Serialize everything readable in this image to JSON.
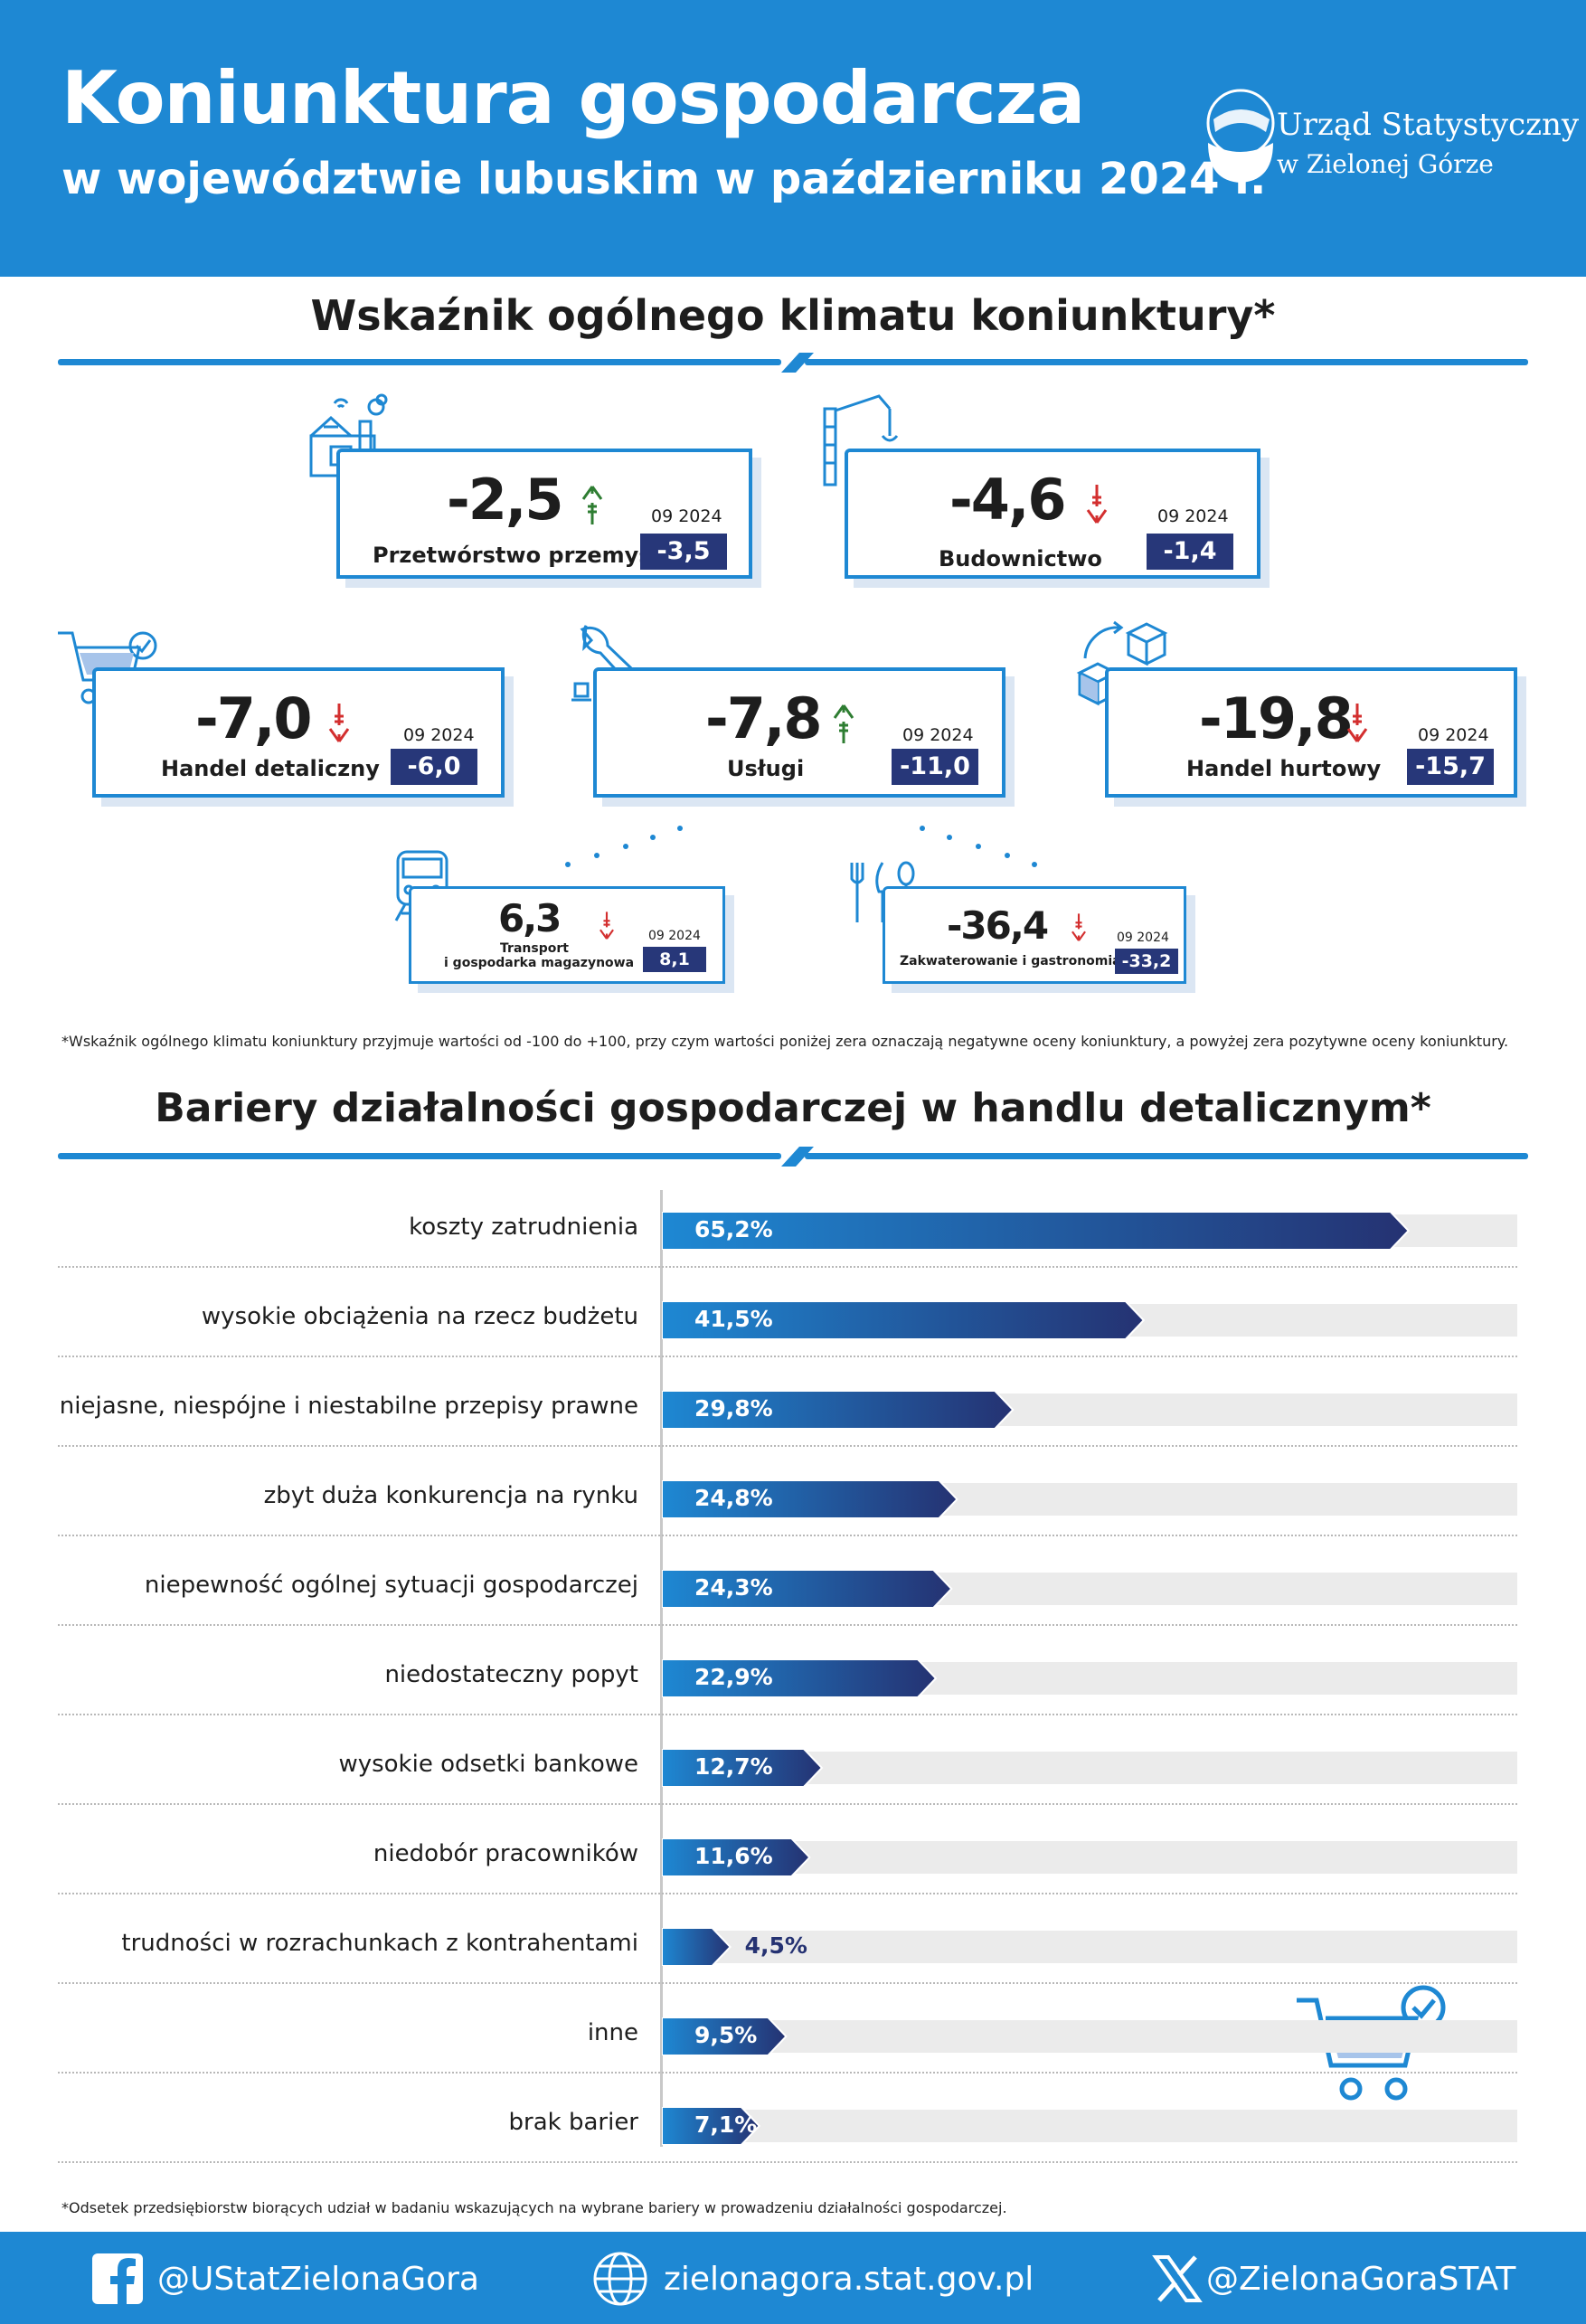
{
  "header": {
    "title": "Koniunktura gospodarcza",
    "subtitle": "w województwie lubuskim w październiku 2024 r.",
    "logo_line1": "Urząd Statystyczny",
    "logo_line2": "w Zielonej Górze"
  },
  "section1": {
    "title": "Wskaźnik ogólnego klimatu koniunktury*",
    "prev_label": "09 2024",
    "note": "*Wskaźnik ogólnego klimatu koniunktury przyjmuje wartości od -100 do +100, przy czym wartości poniżej zera oznaczają negatywne oceny koniunktury, a powyżej zera pozytywne oceny koniunktury."
  },
  "indicators": [
    {
      "name": "Przetwórstwo przemysłowe",
      "value": "-2,5",
      "prev": "-3,5",
      "trend": "up",
      "icon": "factory-icon"
    },
    {
      "name": "Budownictwo",
      "value": "-4,6",
      "prev": "-1,4",
      "trend": "down",
      "icon": "construction-crane-icon"
    },
    {
      "name": "Handel detaliczny",
      "value": "-7,0",
      "prev": "-6,0",
      "trend": "down",
      "icon": "shopping-cart-icon"
    },
    {
      "name": "Usługi",
      "value": "-7,8",
      "prev": "-11,0",
      "trend": "up",
      "icon": "wrench-icon"
    },
    {
      "name": "Handel hurtowy",
      "value": "-19,8",
      "prev": "-15,7",
      "trend": "down",
      "icon": "boxes-exchange-icon"
    },
    {
      "name_line1": "Transport",
      "name_line2": "i gospodarka magazynowa",
      "value": "6,3",
      "prev": "8,1",
      "trend": "down",
      "icon": "train-icon"
    },
    {
      "name": "Zakwaterowanie i gastronomia",
      "value": "-36,4",
      "prev": "-33,2",
      "trend": "down",
      "icon": "cutlery-icon"
    }
  ],
  "section2": {
    "title": "Bariery działalności gospodarczej w handlu detalicznym*",
    "note": "*Odsetek przedsiębiorstw biorących udział w badaniu wskazujących na wybrane bariery w prowadzeniu działalności gospodarczej."
  },
  "chart_data": {
    "type": "bar",
    "orientation": "horizontal",
    "categories": [
      "koszty zatrudnienia",
      "wysokie obciążenia na rzecz budżetu",
      "niejasne, niespójne i niestabilne przepisy prawne",
      "zbyt duża konkurencja na rynku",
      "niepewność ogólnej sytuacji gospodarczej",
      "niedostateczny popyt",
      "wysokie odsetki bankowe",
      "niedobór pracowników",
      "trudności w rozrachunkach z kontrahentami",
      "inne",
      "brak barier"
    ],
    "values": [
      65.2,
      41.5,
      29.8,
      24.8,
      24.3,
      22.9,
      12.7,
      11.6,
      4.5,
      9.5,
      7.1
    ],
    "labels": [
      "65,2%",
      "41,5%",
      "29,8%",
      "24,8%",
      "24,3%",
      "22,9%",
      "12,7%",
      "11,6%",
      "4,5%",
      "9,5%",
      "7,1%"
    ],
    "xlim": [
      0,
      70
    ],
    "title": "Bariery działalności gospodarczej w handlu detalicznym*",
    "colors": {
      "start": "#1e88d3",
      "end": "#253272",
      "track": "#ebebeb"
    }
  },
  "footer": {
    "facebook": "@UStatZielonaGora",
    "website": "zielonagora.stat.gov.pl",
    "x": "@ZielonaGoraSTAT"
  },
  "colors": {
    "accent": "#1e88d3",
    "navy": "#273779",
    "up": "#2e7d32",
    "down": "#d32f2f"
  }
}
